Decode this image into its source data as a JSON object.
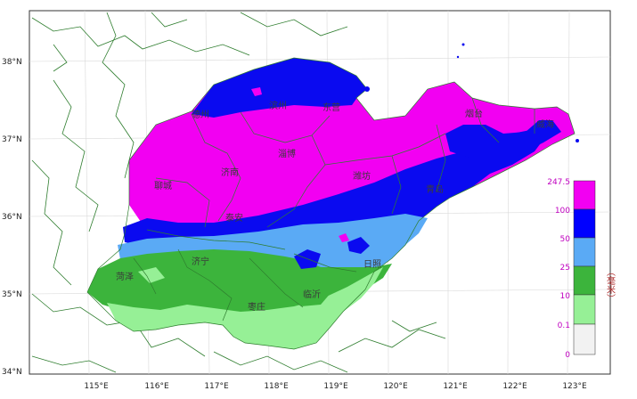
{
  "map": {
    "lat_labels": [
      "38°N",
      "37°N",
      "36°N",
      "35°N",
      "34°N"
    ],
    "lon_labels": [
      "115°E",
      "116°E",
      "117°E",
      "118°E",
      "119°E",
      "120°E",
      "121°E",
      "122°E",
      "123°E"
    ],
    "cities": [
      {
        "name": "德州"
      },
      {
        "name": "滨州"
      },
      {
        "name": "东营"
      },
      {
        "name": "烟台"
      },
      {
        "name": "威海"
      },
      {
        "name": "淄博"
      },
      {
        "name": "济南"
      },
      {
        "name": "聊城"
      },
      {
        "name": "潍坊"
      },
      {
        "name": "青岛"
      },
      {
        "name": "泰安"
      },
      {
        "name": "济宁"
      },
      {
        "name": "菏泽"
      },
      {
        "name": "日照"
      },
      {
        "name": "临沂"
      },
      {
        "name": "枣庄"
      }
    ]
  },
  "legend": {
    "unit": "（毫米）",
    "thresholds": [
      "247.5",
      "100",
      "50",
      "25",
      "10",
      "0.1",
      "0"
    ],
    "colors": [
      "#f200f2",
      "#0000ff",
      "#5aaaf5",
      "#3cb43c",
      "#96f096",
      "#f2f2f2"
    ]
  },
  "colors": {
    "background": "#ffffff",
    "border": "#2e7d2e",
    "magenta": "#f200f2",
    "blue": "#0a0af0",
    "lightblue": "#5aaaf5",
    "green": "#3cb43c",
    "lightgreen": "#96f096"
  }
}
